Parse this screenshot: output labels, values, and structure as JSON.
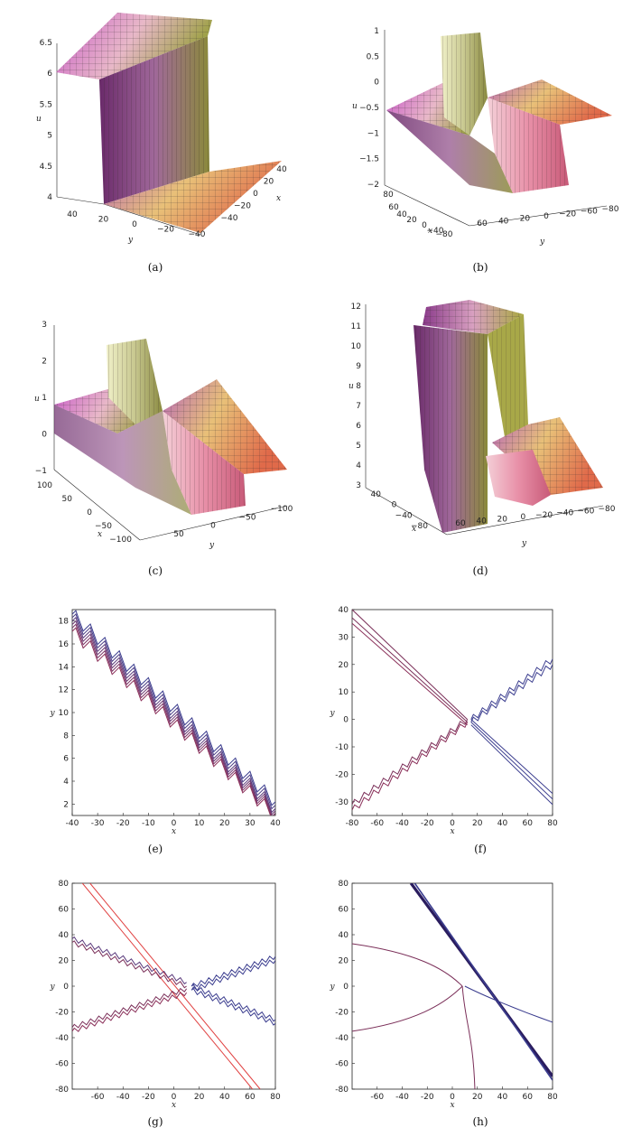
{
  "figure": {
    "panels": [
      {
        "id": "a",
        "caption": "(a)"
      },
      {
        "id": "b",
        "caption": "(b)"
      },
      {
        "id": "c",
        "caption": "(c)"
      },
      {
        "id": "d",
        "caption": "(d)"
      },
      {
        "id": "e",
        "caption": "(e)"
      },
      {
        "id": "f",
        "caption": "(f)"
      },
      {
        "id": "g",
        "caption": "(g)"
      },
      {
        "id": "h",
        "caption": "(h)"
      }
    ]
  },
  "chart_data": [
    {
      "id": "a",
      "type": "surface3d",
      "zlabel": "u",
      "xlabel": "x",
      "ylabel": "y",
      "zticks": [
        "4",
        "4.5",
        "5",
        "5.5",
        "6",
        "6.5"
      ],
      "yticks": [
        "40",
        "20",
        "0",
        "−20",
        "−40"
      ],
      "xticks": [
        "40",
        "20",
        "0",
        "−20",
        "−40"
      ],
      "levels": {
        "high": 6,
        "low": 4
      },
      "colors": [
        "#c85ac8",
        "#e8e070",
        "#e06a4a"
      ]
    },
    {
      "id": "b",
      "type": "surface3d",
      "zlabel": "u",
      "xlabel": "x",
      "ylabel": "y",
      "zticks": [
        "1",
        "0.5",
        "0",
        "−0.5",
        "−1",
        "−1.5",
        "−2"
      ],
      "xticks": [
        "80",
        "60",
        "40",
        "20",
        "0",
        "−40",
        "−80"
      ],
      "yticks": [
        "60",
        "40",
        "20",
        "0",
        "−20",
        "−60",
        "−80"
      ],
      "colors": [
        "#c85ac8",
        "#e8e070",
        "#e06a4a"
      ]
    },
    {
      "id": "c",
      "type": "surface3d",
      "zlabel": "u",
      "xlabel": "x",
      "ylabel": "y",
      "zticks": [
        "3",
        "2",
        "1",
        "0",
        "−1"
      ],
      "xticks": [
        "100",
        "50",
        "0",
        "−50",
        "−100"
      ],
      "yticks": [
        "50",
        "0",
        "−50",
        "−100"
      ],
      "colors": [
        "#c85ac8",
        "#e8e070",
        "#e06a4a"
      ]
    },
    {
      "id": "d",
      "type": "surface3d",
      "zlabel": "u",
      "xlabel": "x",
      "ylabel": "y",
      "zticks": [
        "12",
        "11",
        "10",
        "9",
        "8",
        "7",
        "6",
        "5",
        "4",
        "3"
      ],
      "xticks": [
        "40",
        "0",
        "−40",
        "−80"
      ],
      "yticks": [
        "60",
        "40",
        "20",
        "0",
        "−20",
        "−40",
        "−60",
        "−80"
      ],
      "colors": [
        "#c85ac8",
        "#e8e070",
        "#e06a4a"
      ]
    },
    {
      "id": "e",
      "type": "line",
      "xlabel": "x",
      "ylabel": "y",
      "xlim": [
        -40,
        40
      ],
      "ylim": [
        1,
        19
      ],
      "xticks": [
        -40,
        -30,
        -20,
        -10,
        0,
        10,
        20,
        30,
        40
      ],
      "yticks": [
        2,
        4,
        6,
        8,
        10,
        12,
        14,
        16,
        18
      ],
      "series": [
        {
          "color": "#3a3c8e",
          "x0": -40,
          "y0": 18.6,
          "x1": 40,
          "y1": 2.2,
          "steps": 14,
          "amp": 0.6
        },
        {
          "color": "#4a3c86",
          "x0": -40,
          "y0": 18.3,
          "x1": 40,
          "y1": 1.9,
          "steps": 14,
          "amp": 0.6
        },
        {
          "color": "#5a3a7c",
          "x0": -40,
          "y0": 18.0,
          "x1": 40,
          "y1": 1.6,
          "steps": 14,
          "amp": 0.6
        },
        {
          "color": "#6a3670",
          "x0": -40,
          "y0": 17.7,
          "x1": 40,
          "y1": 1.4,
          "steps": 14,
          "amp": 0.6
        },
        {
          "color": "#7a3264",
          "x0": -40,
          "y0": 17.4,
          "x1": 40,
          "y1": 1.2,
          "steps": 14,
          "amp": 0.6
        },
        {
          "color": "#8a2e58",
          "x0": -40,
          "y0": 17.1,
          "x1": 40,
          "y1": 1.0,
          "steps": 14,
          "amp": 0.6
        }
      ]
    },
    {
      "id": "f",
      "type": "line",
      "xlabel": "x",
      "ylabel": "y",
      "xlim": [
        -80,
        80
      ],
      "ylim": [
        -35,
        40
      ],
      "xticks": [
        -80,
        -60,
        -40,
        -20,
        0,
        20,
        40,
        60,
        80
      ],
      "yticks": [
        -30,
        -20,
        -10,
        0,
        10,
        20,
        30,
        40
      ],
      "series": [
        {
          "color": "#7a2e58",
          "x0": -80,
          "y0": 40,
          "x1": 12,
          "y1": 0,
          "steps": 0,
          "amp": 0
        },
        {
          "color": "#7a2e58",
          "x0": -80,
          "y0": 37,
          "x1": 12,
          "y1": -1,
          "steps": 0,
          "amp": 0
        },
        {
          "color": "#8a2e58",
          "x0": -80,
          "y0": 35,
          "x1": 12,
          "y1": -2,
          "steps": 0,
          "amp": 0
        },
        {
          "color": "#3a3c8e",
          "x0": 15,
          "y0": 0,
          "x1": 80,
          "y1": -27,
          "steps": 0,
          "amp": 0
        },
        {
          "color": "#3a3c8e",
          "x0": 15,
          "y0": -1,
          "x1": 80,
          "y1": -29,
          "steps": 0,
          "amp": 0
        },
        {
          "color": "#3a3c8e",
          "x0": 15,
          "y0": -2,
          "x1": 80,
          "y1": -31,
          "steps": 0,
          "amp": 0
        },
        {
          "color": "#7a2e58",
          "x0": -80,
          "y0": -31,
          "x1": 12,
          "y1": 0,
          "steps": 12,
          "amp": 1.2
        },
        {
          "color": "#8a2e58",
          "x0": -80,
          "y0": -33,
          "x1": 12,
          "y1": -1,
          "steps": 12,
          "amp": 1.2
        },
        {
          "color": "#3a3c8e",
          "x0": 15,
          "y0": 0,
          "x1": 80,
          "y1": 22,
          "steps": 9,
          "amp": 1.2
        },
        {
          "color": "#3a3c8e",
          "x0": 15,
          "y0": -1,
          "x1": 80,
          "y1": 20,
          "steps": 9,
          "amp": 1.2
        }
      ]
    },
    {
      "id": "g",
      "type": "line",
      "xlabel": "x",
      "ylabel": "y",
      "xlim": [
        -80,
        80
      ],
      "ylim": [
        -80,
        80
      ],
      "xticks": [
        -60,
        -40,
        -20,
        0,
        20,
        40,
        60,
        80
      ],
      "yticks": [
        -80,
        -60,
        -40,
        -20,
        0,
        20,
        40,
        60,
        80
      ],
      "series": [
        {
          "color": "#e04040",
          "x0": -72,
          "y0": 80,
          "x1": 62,
          "y1": -80,
          "steps": 0,
          "amp": 0
        },
        {
          "color": "#e04040",
          "x0": -66,
          "y0": 80,
          "x1": 68,
          "y1": -80,
          "steps": 0,
          "amp": 0
        },
        {
          "color": "#5a3a7c",
          "x0": -80,
          "y0": 37,
          "x1": 10,
          "y1": 3,
          "steps": 14,
          "amp": 1.8
        },
        {
          "color": "#7a2e58",
          "x0": -80,
          "y0": 34,
          "x1": 10,
          "y1": 0,
          "steps": 14,
          "amp": 1.8
        },
        {
          "color": "#7a2e58",
          "x0": -80,
          "y0": -32,
          "x1": 10,
          "y1": -2,
          "steps": 14,
          "amp": 1.8
        },
        {
          "color": "#8a2e58",
          "x0": -80,
          "y0": -35,
          "x1": 10,
          "y1": -5,
          "steps": 14,
          "amp": 1.8
        },
        {
          "color": "#3a3c8e",
          "x0": 14,
          "y0": 0,
          "x1": 80,
          "y1": 23,
          "steps": 11,
          "amp": 1.8
        },
        {
          "color": "#3a3c8e",
          "x0": 14,
          "y0": -3,
          "x1": 80,
          "y1": 20,
          "steps": 11,
          "amp": 1.8
        },
        {
          "color": "#3a3c8e",
          "x0": 14,
          "y0": 0,
          "x1": 80,
          "y1": -26,
          "steps": 11,
          "amp": 1.8
        },
        {
          "color": "#3a3c8e",
          "x0": 14,
          "y0": -3,
          "x1": 80,
          "y1": -29,
          "steps": 11,
          "amp": 1.8
        }
      ]
    },
    {
      "id": "h",
      "type": "line",
      "xlabel": "x",
      "ylabel": "y",
      "xlim": [
        -80,
        80
      ],
      "ylim": [
        -80,
        80
      ],
      "xticks": [
        -60,
        -40,
        -20,
        0,
        20,
        40,
        60,
        80
      ],
      "yticks": [
        -80,
        -60,
        -40,
        -20,
        0,
        20,
        40,
        60,
        80
      ],
      "series": [
        {
          "color": "#2a1c5e",
          "x0": -33,
          "y0": 80,
          "x1": 80,
          "y1": -70,
          "steps": 0,
          "amp": 0,
          "width": 3.2
        },
        {
          "color": "#3a3c8e",
          "x0": -30,
          "y0": 80,
          "x1": 80,
          "y1": -73,
          "steps": 0,
          "amp": 0,
          "width": 1.6
        },
        {
          "color": "#7a2e58",
          "x0": -80,
          "y0": 33,
          "x1": 8,
          "y1": 0,
          "curve": "arcTop"
        },
        {
          "color": "#7a2e58",
          "x0": -80,
          "y0": -35,
          "x1": 8,
          "y1": 0,
          "curve": "arcBottom"
        },
        {
          "color": "#7a2e58",
          "x0": 8,
          "y0": 0,
          "x1": 18,
          "y1": -80,
          "curve": "down"
        },
        {
          "color": "#3a3c8e",
          "x0": 10,
          "y0": 0,
          "x1": 80,
          "y1": -28,
          "curve": "right"
        }
      ]
    }
  ]
}
